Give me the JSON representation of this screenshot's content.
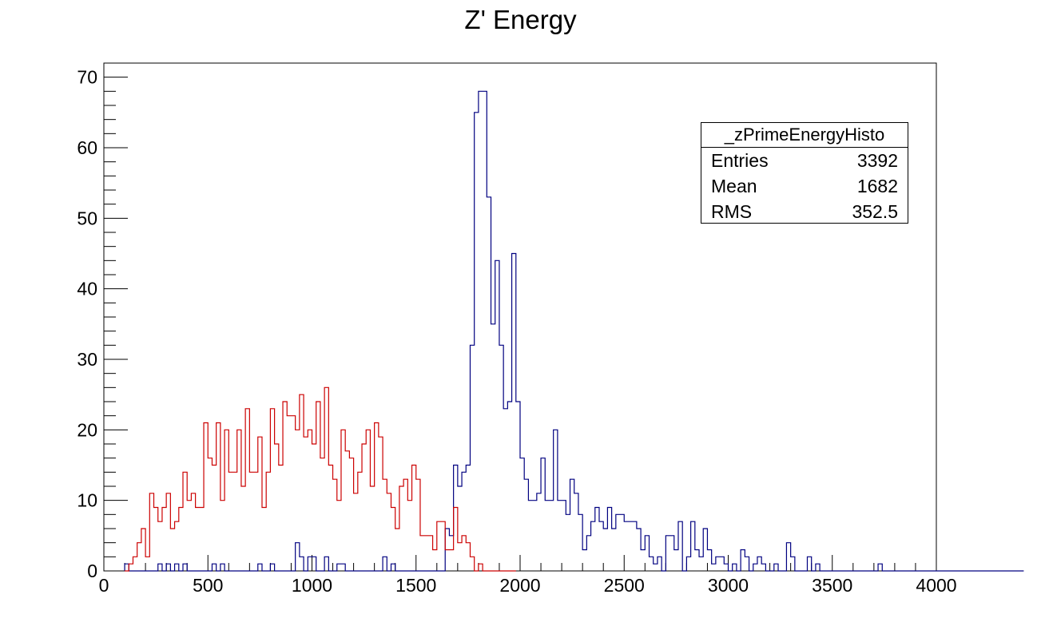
{
  "chart_data": {
    "type": "histogram",
    "title": "Z' Energy",
    "xlim": [
      0,
      4000
    ],
    "ylim": [
      0,
      72
    ],
    "bin_width": 20,
    "x_ticks": [
      0,
      500,
      1000,
      1500,
      2000,
      2500,
      3000,
      3500,
      4000
    ],
    "y_ticks": [
      0,
      10,
      20,
      30,
      40,
      50,
      60,
      70
    ],
    "grid": false,
    "stats_box": {
      "name": "_zPrimeEnergyHisto",
      "entries_label": "Entries",
      "entries": "3392",
      "mean_label": "Mean",
      "mean": "1682",
      "rms_label": "RMS",
      "rms": "352.5"
    },
    "series": [
      {
        "color": "#000080",
        "x_start": 100,
        "counts": [
          1,
          0,
          0,
          0,
          0,
          0,
          0,
          0,
          1,
          0,
          1,
          0,
          1,
          0,
          1,
          0,
          0,
          0,
          0,
          0,
          0,
          1,
          0,
          1,
          0,
          0,
          0,
          0,
          0,
          0,
          0,
          0,
          1,
          0,
          0,
          1,
          0,
          0,
          0,
          0,
          0,
          4,
          2,
          0,
          2,
          2,
          0,
          0,
          2,
          0,
          0,
          1,
          1,
          0,
          0,
          0,
          0,
          0,
          0,
          0,
          0,
          0,
          2,
          0,
          1,
          0,
          0,
          0,
          0,
          0,
          0,
          0,
          0,
          0,
          0,
          0,
          0,
          6,
          5,
          15,
          12,
          14,
          15,
          32,
          65,
          68,
          68,
          53,
          35,
          44,
          32,
          23,
          24,
          45,
          24,
          16,
          13,
          10,
          10,
          11,
          16,
          10,
          10,
          20,
          10,
          10,
          8,
          13,
          11,
          8,
          3,
          5,
          7,
          9,
          7,
          6,
          9,
          6,
          8,
          8,
          7,
          7,
          7,
          6,
          3,
          5,
          2,
          1,
          2,
          0,
          5,
          5,
          3,
          7,
          0,
          2,
          7,
          3,
          2,
          6,
          3,
          1,
          2,
          2,
          1,
          0,
          1,
          0,
          3,
          2,
          0,
          1,
          2,
          1,
          0,
          0,
          1,
          0,
          0,
          4,
          2,
          0,
          0,
          0,
          2,
          0,
          1,
          0,
          0,
          0,
          0,
          0,
          0,
          0,
          0,
          0,
          0,
          0,
          0,
          0,
          0,
          1,
          0,
          0,
          0,
          0,
          0,
          0,
          0,
          0,
          0,
          0,
          0,
          0,
          0,
          0,
          0,
          0,
          0,
          0,
          0,
          0,
          0,
          0,
          0,
          0,
          0,
          0,
          0,
          0,
          0,
          0,
          0,
          0,
          0,
          0
        ]
      },
      {
        "color": "#cc0000",
        "x_start": 100,
        "counts": [
          0,
          1,
          2,
          4,
          6,
          2,
          11,
          9,
          7,
          9,
          11,
          6,
          7,
          9,
          14,
          10,
          11,
          9,
          9,
          21,
          16,
          15,
          21,
          10,
          20,
          14,
          14,
          20,
          12,
          23,
          14,
          14,
          19,
          9,
          14,
          23,
          18,
          15,
          24,
          22,
          22,
          20,
          25,
          19,
          20,
          18,
          24,
          16,
          26,
          15,
          13,
          10,
          20,
          17,
          16,
          11,
          14,
          18,
          20,
          12,
          21,
          19,
          13,
          11,
          9,
          6,
          12,
          13,
          10,
          15,
          13,
          5,
          5,
          5,
          3,
          7,
          7,
          3,
          3,
          9,
          4,
          5,
          4,
          2,
          0,
          1,
          0,
          0,
          0,
          0,
          0,
          0,
          0,
          0
        ]
      }
    ]
  }
}
